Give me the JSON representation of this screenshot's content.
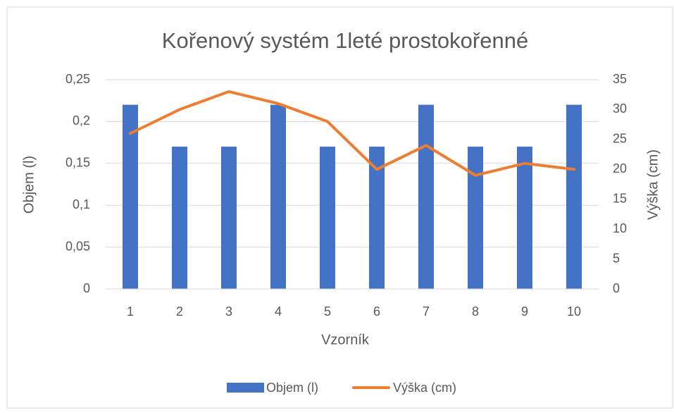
{
  "chart_data": {
    "type": "combo",
    "title": "Kořenový systém 1leté prostokořenné",
    "x_label": "Vzorník",
    "y_label": "Objem (l)",
    "y2_label": "Výška (cm)",
    "categories": [
      "1",
      "2",
      "3",
      "4",
      "5",
      "6",
      "7",
      "8",
      "9",
      "10"
    ],
    "series": [
      {
        "name": "Objem (l)",
        "type": "bar",
        "color": "#4472c4",
        "values": [
          0.22,
          0.17,
          0.17,
          0.22,
          0.17,
          0.17,
          0.22,
          0.17,
          0.17,
          0.22
        ]
      },
      {
        "name": "Výška (cm)",
        "type": "line",
        "axis": "y2",
        "color": "#ed7d31",
        "values": [
          26,
          30,
          33,
          31,
          28,
          20,
          24,
          19,
          21,
          20
        ]
      }
    ],
    "ylim": [
      0,
      0.25
    ],
    "yticks": [
      0,
      {
        "value": 0.05,
        "label": "0,05"
      },
      {
        "value": 0.1,
        "label": "0,1"
      },
      {
        "value": 0.15,
        "label": "0,15"
      },
      {
        "value": 0.2,
        "label": "0,2"
      },
      {
        "value": 0.25,
        "label": "0,25"
      }
    ],
    "y2lim": [
      0,
      35
    ],
    "y2ticks": [
      0,
      5,
      10,
      15,
      20,
      25,
      30,
      35
    ],
    "grid": true,
    "legend": "bottom"
  }
}
